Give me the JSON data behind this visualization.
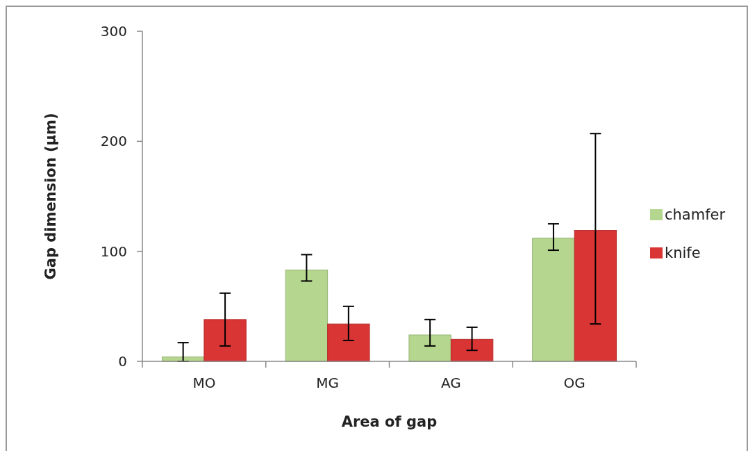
{
  "chart_data": {
    "type": "bar",
    "xlabel": "Area of gap",
    "ylabel": "Gap dimension (µm)",
    "categories": [
      "MO",
      "MG",
      "AG",
      "OG"
    ],
    "series": [
      {
        "name": "chamfer",
        "color": "#b5d68f",
        "values": [
          4,
          83,
          24,
          112
        ],
        "errors": [
          [
            0,
            17
          ],
          [
            73,
            97
          ],
          [
            14,
            38
          ],
          [
            101,
            125
          ]
        ]
      },
      {
        "name": "knife",
        "color": "#d93535",
        "values": [
          38,
          34,
          20,
          119
        ],
        "errors": [
          [
            14,
            62
          ],
          [
            19,
            50
          ],
          [
            10,
            31
          ],
          [
            34,
            207
          ]
        ]
      }
    ],
    "ylim": [
      0,
      300
    ],
    "yticks": [
      0,
      100,
      200,
      300
    ],
    "grid": false,
    "legend": "right"
  }
}
